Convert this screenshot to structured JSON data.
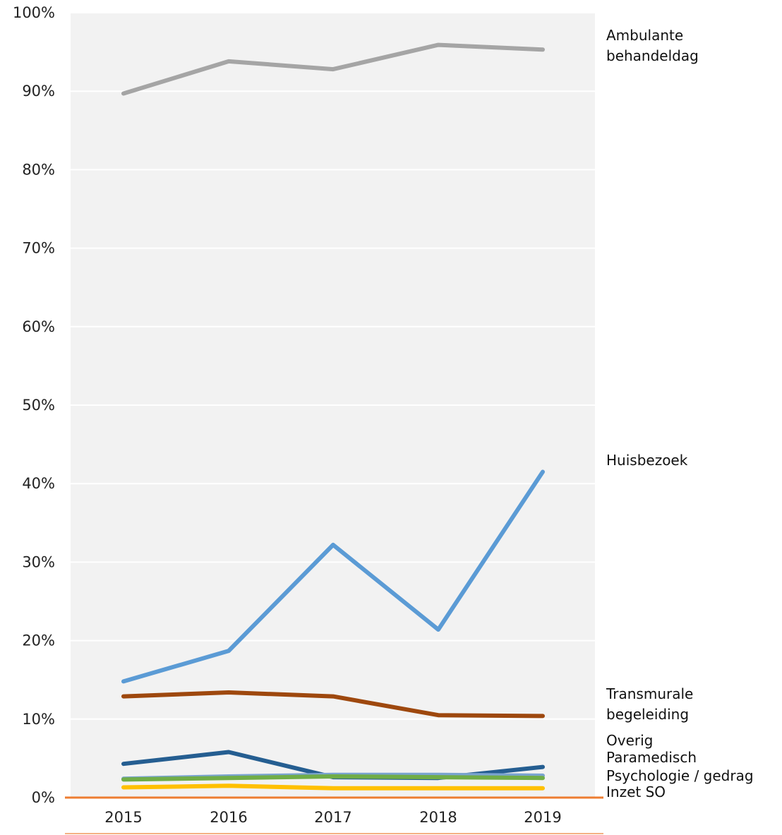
{
  "chart_data": {
    "type": "line",
    "categories": [
      "2015",
      "2016",
      "2017",
      "2018",
      "2019"
    ],
    "ylim": [
      0,
      100
    ],
    "yticks": [
      "0%",
      "10%",
      "20%",
      "30%",
      "40%",
      "50%",
      "60%",
      "70%",
      "80%",
      "90%",
      "100%"
    ],
    "grid": true,
    "legend": "right, inline labels at line ends",
    "series": [
      {
        "name": "Ambulante behandeldag",
        "label_lines": [
          "Ambulante",
          "behandeldag"
        ],
        "color": "#a5a5a5",
        "values": [
          89.7,
          93.8,
          92.8,
          95.9,
          95.3
        ]
      },
      {
        "name": "Huisbezoek",
        "label_lines": [
          "Huisbezoek"
        ],
        "color": "#5b9bd5",
        "values": [
          14.8,
          18.7,
          32.2,
          21.4,
          41.5
        ]
      },
      {
        "name": "Transmurale begeleiding",
        "label_lines": [
          "Transmurale",
          "begeleiding"
        ],
        "color": "#9e480e",
        "values": [
          12.9,
          13.4,
          12.9,
          10.5,
          10.4
        ]
      },
      {
        "name": "Overig",
        "label_lines": [
          "Overig"
        ],
        "color": "#255e91",
        "values": [
          4.3,
          5.8,
          2.6,
          2.5,
          3.9
        ]
      },
      {
        "name": "Paramedisch",
        "label_lines": [
          "Paramedisch"
        ],
        "color": "#7aa4cf",
        "values": [
          2.4,
          2.7,
          2.9,
          2.9,
          2.8
        ]
      },
      {
        "name": "Psychologie / gedrag",
        "label_lines": [
          "Psychologie / gedrag"
        ],
        "color": "#70ad47",
        "values": [
          2.3,
          2.5,
          2.7,
          2.6,
          2.5
        ]
      },
      {
        "name": "Inzet SO",
        "label_lines": [
          "Inzet SO"
        ],
        "color": "#ffc000",
        "values": [
          1.3,
          1.5,
          1.2,
          1.2,
          1.2
        ]
      }
    ]
  }
}
